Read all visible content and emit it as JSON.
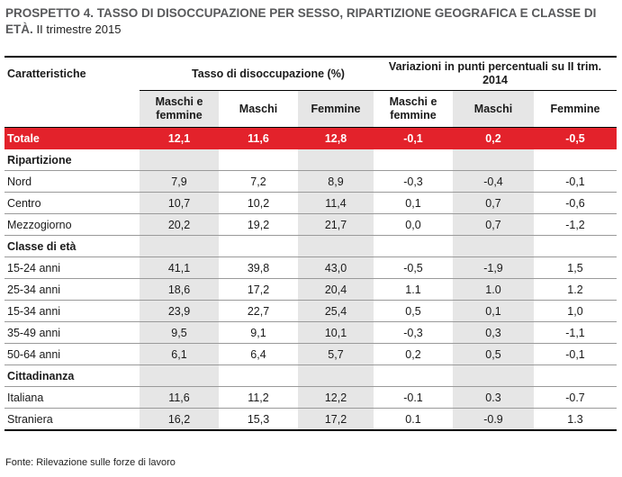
{
  "title": {
    "main": "PROSPETTO 4. TASSO DI DISOCCUPAZIONE PER SESSO, RIPARTIZIONE GEOGRAFICA E CLASSE DI ETÀ.",
    "sub": "II trimestre 2015"
  },
  "header": {
    "col0": "Caratteristiche",
    "group1": "Tasso di disoccupazione (%)",
    "group2": "Variazioni in punti percentuali su II trim. 2014",
    "sub": [
      "Maschi e femmine",
      "Maschi",
      "Femmine",
      "Maschi e femmine",
      "Maschi",
      "Femmine"
    ]
  },
  "total": {
    "label": "Totale",
    "values": [
      "12,1",
      "11,6",
      "12,8",
      "-0,1",
      "0,2",
      "-0,5"
    ]
  },
  "sections": [
    {
      "label": "Ripartizione",
      "rows": [
        {
          "label": "Nord",
          "values": [
            "7,9",
            "7,2",
            "8,9",
            "-0,3",
            "-0,4",
            "-0,1"
          ]
        },
        {
          "label": "Centro",
          "values": [
            "10,7",
            "10,2",
            "11,4",
            "0,1",
            "0,7",
            "-0,6"
          ]
        },
        {
          "label": "Mezzogiorno",
          "values": [
            "20,2",
            "19,2",
            "21,7",
            "0,0",
            "0,7",
            "-1,2"
          ]
        }
      ]
    },
    {
      "label": "Classe di età",
      "rows": [
        {
          "label": "15-24 anni",
          "values": [
            "41,1",
            "39,8",
            "43,0",
            "-0,5",
            "-1,9",
            "1,5"
          ]
        },
        {
          "label": "25-34 anni",
          "values": [
            "18,6",
            "17,2",
            "20,4",
            "1.1",
            "1.0",
            "1.2"
          ]
        },
        {
          "label": "15-34 anni",
          "values": [
            "23,9",
            "22,7",
            "25,4",
            "0,5",
            "0,1",
            "1,0"
          ]
        },
        {
          "label": "35-49 anni",
          "values": [
            "9,5",
            "9,1",
            "10,1",
            "-0,3",
            "0,3",
            "-1,1"
          ]
        },
        {
          "label": "50-64 anni",
          "values": [
            "6,1",
            "6,4",
            "5,7",
            "0,2",
            "0,5",
            "-0,1"
          ]
        }
      ]
    },
    {
      "label": "Cittadinanza",
      "rows": [
        {
          "label": "Italiana",
          "values": [
            "11,6",
            "11,2",
            "12,2",
            "-0.1",
            "0.3",
            "-0.7"
          ]
        },
        {
          "label": "Straniera",
          "values": [
            "16,2",
            "15,3",
            "17,2",
            "0.1",
            "-0.9",
            "1.3"
          ]
        }
      ]
    }
  ],
  "footer": "Fonte: Rilevazione sulle forze di lavoro"
}
